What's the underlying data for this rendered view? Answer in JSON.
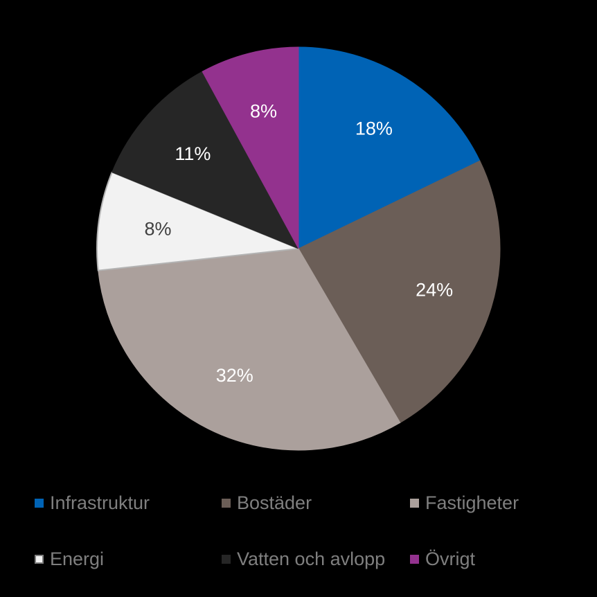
{
  "chart_data": {
    "type": "pie",
    "slices": [
      {
        "label": "Infrastruktur",
        "value": 18,
        "value_label": "18%",
        "color": "#0063b5",
        "label_color": "#ffffff"
      },
      {
        "label": "Bostäder",
        "value": 24,
        "value_label": "24%",
        "color": "#6b5e57",
        "label_color": "#ffffff"
      },
      {
        "label": "Fastigheter",
        "value": 32,
        "value_label": "32%",
        "color": "#aba09c",
        "label_color": "#ffffff"
      },
      {
        "label": "Energi",
        "value": 8,
        "value_label": "8%",
        "color": "#f2f2f2",
        "label_color": "#404040"
      },
      {
        "label": "Vatten och avlopp",
        "value": 11,
        "value_label": "11%",
        "color": "#262626",
        "label_color": "#ffffff"
      },
      {
        "label": "Övrigt",
        "value": 8,
        "value_label": "8%",
        "color": "#93328e",
        "label_color": "#ffffff"
      }
    ],
    "start_angle": "12 o'clock",
    "direction": "clockwise",
    "legend_position": "bottom",
    "background": "#000000",
    "legend_text_color": "#7f7f7f"
  }
}
